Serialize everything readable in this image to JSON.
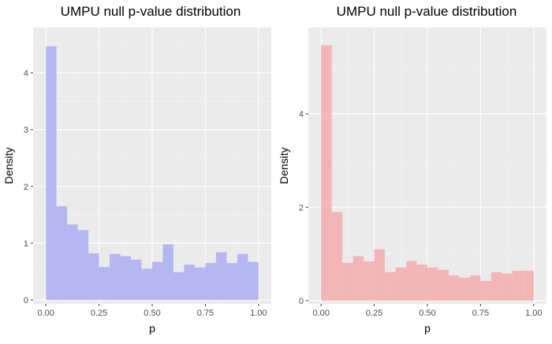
{
  "chart_data": [
    {
      "type": "bar",
      "title": "UMPU null p-value distribution",
      "xlabel": "p",
      "ylabel": "Density",
      "xlim": [
        -0.06,
        1.06
      ],
      "ylim": [
        -0.07,
        4.8
      ],
      "xticks": [
        0.0,
        0.25,
        0.5,
        0.75,
        1.0
      ],
      "xtick_labels": [
        "0.00",
        "0.25",
        "0.50",
        "0.75",
        "1.00"
      ],
      "yticks": [
        0,
        1,
        2,
        3,
        4
      ],
      "ytick_labels": [
        "0",
        "1",
        "2",
        "3",
        "4"
      ],
      "bin_edges": [
        0,
        0.05,
        0.1,
        0.15,
        0.2,
        0.25,
        0.3,
        0.35,
        0.4,
        0.45,
        0.5,
        0.55,
        0.6,
        0.65,
        0.7,
        0.75,
        0.8,
        0.85,
        0.9,
        0.95,
        1.0
      ],
      "values": [
        4.47,
        1.65,
        1.33,
        1.23,
        0.82,
        0.58,
        0.81,
        0.77,
        0.71,
        0.55,
        0.67,
        0.98,
        0.49,
        0.62,
        0.57,
        0.65,
        0.84,
        0.65,
        0.81,
        0.67
      ],
      "fill_color": "#b6b6f2",
      "panel_bg": "#ebebeb",
      "grid": true
    },
    {
      "type": "bar",
      "title": "UMPU null p-value distribution",
      "xlabel": "p",
      "ylabel": "Density",
      "xlim": [
        -0.06,
        1.06
      ],
      "ylim": [
        -0.07,
        5.85
      ],
      "xticks": [
        0.0,
        0.25,
        0.5,
        0.75,
        1.0
      ],
      "xtick_labels": [
        "0.00",
        "0.25",
        "0.50",
        "0.75",
        "1.00"
      ],
      "yticks": [
        0,
        2,
        4
      ],
      "ytick_labels": [
        "0",
        "2",
        "4"
      ],
      "bin_edges": [
        0,
        0.05,
        0.1,
        0.15,
        0.2,
        0.25,
        0.3,
        0.35,
        0.4,
        0.45,
        0.5,
        0.55,
        0.6,
        0.65,
        0.7,
        0.75,
        0.8,
        0.85,
        0.9,
        0.95,
        1.0
      ],
      "values": [
        5.47,
        1.9,
        0.81,
        0.95,
        0.84,
        1.1,
        0.61,
        0.71,
        0.85,
        0.77,
        0.71,
        0.66,
        0.54,
        0.49,
        0.54,
        0.42,
        0.61,
        0.58,
        0.64,
        0.64
      ],
      "fill_color": "#f2b6b6",
      "panel_bg": "#ebebeb",
      "grid": true
    }
  ]
}
